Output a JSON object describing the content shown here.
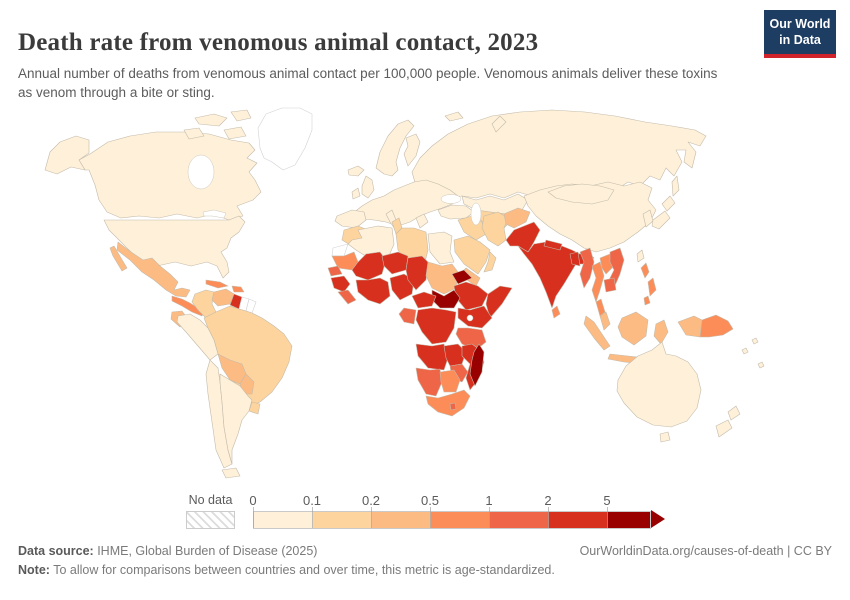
{
  "header": {
    "title": "Death rate from venomous animal contact, 2023",
    "subtitle": "Annual number of deaths from venomous animal contact per 100,000 people. Venomous animals deliver these toxins as venom through a bite or sting."
  },
  "logo": {
    "line1": "Our World",
    "line2": "in Data",
    "bg_color": "#1d3d63",
    "stripe_color": "#d0232b"
  },
  "chart_data": {
    "type": "choropleth-world-map",
    "title": "Death rate from venomous animal contact, 2023",
    "metric": "Annual deaths from venomous animal contact per 100,000 people",
    "year": "2023",
    "legend": {
      "no_data_label": "No data",
      "no_data_color": "#ffffff",
      "ticks": [
        "0",
        "0.1",
        "0.2",
        "0.5",
        "1",
        "2",
        "5"
      ],
      "bin_ranges": [
        "0-0.1",
        "0.1-0.2",
        "0.2-0.5",
        "0.5-1",
        "1-2",
        "2-5",
        "5+"
      ],
      "colors": [
        "#fef0d9",
        "#fdd49e",
        "#fdbb84",
        "#fc8d59",
        "#ef6548",
        "#d7301f",
        "#990000"
      ],
      "arrow_color": "#990000"
    },
    "regions": {
      "alaska": 0,
      "canada": 0,
      "arctic-island-1": 0,
      "arctic-island-2": 0,
      "arctic-island-3": 0,
      "arctic-island-4": 0,
      "greenland": -1,
      "usa": 0,
      "mexico": 2,
      "baja-california": 2,
      "cuba": 3,
      "hispaniola": 3,
      "central-america": 3,
      "colombia": 1,
      "venezuela": 2,
      "guyana": 5,
      "suriname": -1,
      "french-guiana": -1,
      "ecuador": 2,
      "peru": 0,
      "brazil": 1,
      "bolivia": 2,
      "paraguay": 2,
      "uruguay": 1,
      "chile": 0,
      "argentina": 0,
      "tierra-del-fuego": 0,
      "iceland": 0,
      "norway-sweden": 0,
      "finland": 0,
      "uk": 0,
      "ireland": 0,
      "europe-mainland": 0,
      "iberia": 0,
      "italy": 0,
      "greece": 0,
      "russia": 0,
      "svalbard": 0,
      "novaya-zemlya": 0,
      "sakhalin": 0,
      "kazakhstan": 0,
      "central-asia": 1,
      "turkey": 0,
      "syria-iraq": 1,
      "iran": 1,
      "afghanistan": 2,
      "pakistan": 5,
      "saudi-arabia": 1,
      "yemen": 2,
      "oman": 1,
      "morocco": 1,
      "western-sahara": -1,
      "algeria": 0,
      "tunisia": 1,
      "libya": 1,
      "egypt": 0,
      "mauritania": 3,
      "mali": 5,
      "senegal": 4,
      "guinea": 5,
      "sierra-leone-liberia": 4,
      "ivory-coast-ghana": 5,
      "niger": 5,
      "nigeria": 5,
      "chad": 5,
      "sudan": 2,
      "eritrea": 6,
      "ethiopia": 5,
      "somalia": 5,
      "south-sudan": 6,
      "cameroon-car": 5,
      "gabon-congo": 4,
      "dr-congo": 5,
      "uganda-kenya": 5,
      "tanzania": 4,
      "angola": 5,
      "zambia": 5,
      "mozambique-malawi": 5,
      "zimbabwe": 4,
      "namibia": 4,
      "botswana": 3,
      "south-africa": 3,
      "lesotho": 4,
      "madagascar": 6,
      "china": 0,
      "mongolia": 0,
      "korea": 0,
      "japan": 0,
      "taiwan": 0,
      "india": 5,
      "nepal": 5,
      "bangladesh": 5,
      "sri-lanka": 3,
      "myanmar": 4,
      "thailand": 3,
      "thai-peninsula": 3,
      "malaysia": 2,
      "laos": 3,
      "vietnam": 4,
      "cambodia": 4,
      "philippines": 3,
      "sumatra": 2,
      "java": 2,
      "borneo": 2,
      "sulawesi": 2,
      "lesser-sunda": 2,
      "indonesia-papua": 2,
      "papua-new-guinea": 3,
      "australia": 0,
      "tasmania": 0,
      "nz-north": 0,
      "nz-south": 0,
      "pacific-islands": 0
    }
  },
  "footer": {
    "source_label": "Data source:",
    "source_text": " IHME, Global Burden of Disease (2025)",
    "link": "OurWorldinData.org/causes-of-death | CC BY",
    "note_label": "Note:",
    "note_text": " To allow for comparisons between countries and over time, this metric is age-standardized."
  }
}
